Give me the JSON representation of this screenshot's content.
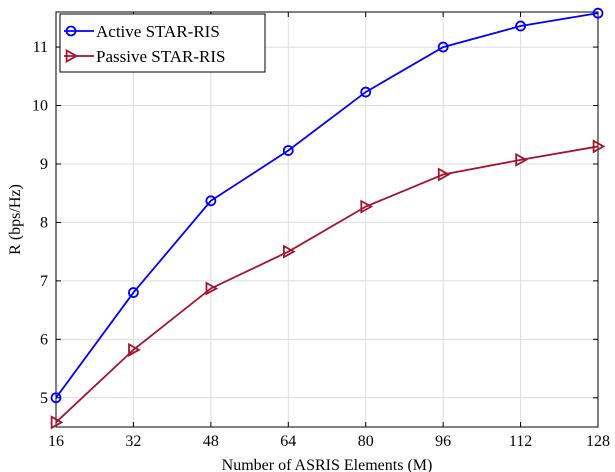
{
  "chart_data": {
    "type": "line",
    "xlabel": "Number of ASRIS Elements (M)",
    "ylabel": "R (bps/Hz)",
    "x": [
      16,
      32,
      48,
      64,
      80,
      96,
      112,
      128
    ],
    "xlim": [
      16,
      128
    ],
    "ylim": [
      4.5,
      11.6
    ],
    "xticks": [
      "16",
      "32",
      "48",
      "64",
      "80",
      "96",
      "112",
      "128"
    ],
    "yticks": [
      "5",
      "6",
      "7",
      "8",
      "9",
      "10",
      "11"
    ],
    "grid": true,
    "legend_position": "top-left",
    "series": [
      {
        "name": "Active STAR-RIS",
        "color": "#0000ff",
        "marker": "circle",
        "values": [
          5.0,
          6.8,
          8.37,
          9.23,
          10.23,
          11.0,
          11.36,
          11.58
        ]
      },
      {
        "name": "Passive STAR-RIS",
        "color": "#a2142f",
        "marker": "triangle-right",
        "values": [
          4.58,
          5.82,
          6.87,
          7.5,
          8.27,
          8.82,
          9.07,
          9.3
        ]
      }
    ]
  }
}
